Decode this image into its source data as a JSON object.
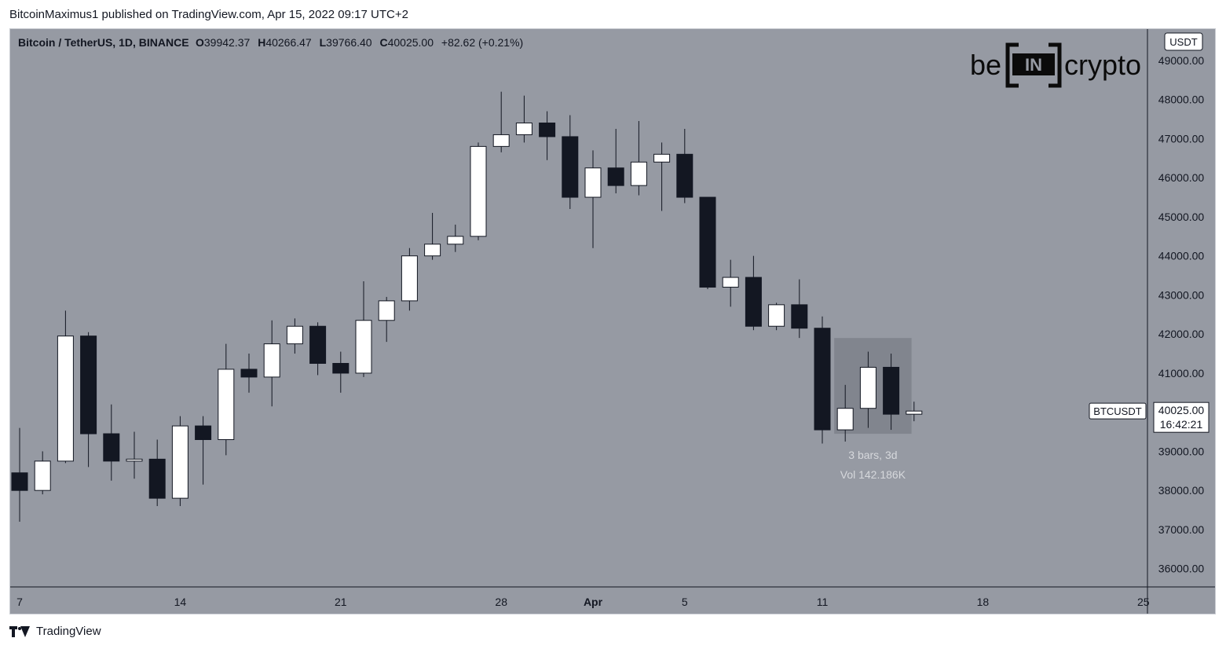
{
  "header": {
    "published_text": "BitcoinMaximus1 published on TradingView.com, Apr 15, 2022 09:17 UTC+2"
  },
  "legend": {
    "symbol": "Bitcoin / TetherUS, 1D, BINANCE",
    "o_label": "O",
    "o_value": "39942.37",
    "h_label": "H",
    "h_value": "40266.47",
    "l_label": "L",
    "l_value": "39766.40",
    "c_label": "C",
    "c_value": "40025.00",
    "change": "+82.62 (+0.21%)"
  },
  "watermark": {
    "left": "be",
    "mid": "IN",
    "right": "crypto"
  },
  "price_axis": {
    "unit_badge": "USDT"
  },
  "price_label": {
    "ticker": "BTCUSDT",
    "price": "40025.00",
    "countdown": "16:42:21"
  },
  "range_box": {
    "bars_text": "3 bars, 3d",
    "vol_text": "Vol 142.186K"
  },
  "footer": {
    "brand": "TradingView"
  },
  "colors": {
    "background": "#969aa3",
    "bull_fill": "#ffffff",
    "bear_fill": "#131722",
    "wick": "#131722",
    "axis_text": "#131722",
    "range_box": "#7a7e87"
  },
  "chart_data": {
    "type": "candlestick",
    "ylim": [
      35400,
      49500
    ],
    "yticks": [
      36000,
      37000,
      38000,
      39000,
      40000,
      41000,
      42000,
      43000,
      44000,
      45000,
      46000,
      47000,
      48000,
      49000
    ],
    "ytick_labels": [
      "36000.00",
      "37000.00",
      "38000.00",
      "39000.00",
      "40000.00",
      "41000.00",
      "42000.00",
      "43000.00",
      "44000.00",
      "45000.00",
      "46000.00",
      "47000.00",
      "48000.00",
      "49000.00"
    ],
    "xtick_labels": [
      {
        "bar": 0,
        "label": "7"
      },
      {
        "bar": 7,
        "label": "14"
      },
      {
        "bar": 14,
        "label": "21"
      },
      {
        "bar": 21,
        "label": "28"
      },
      {
        "bar": 25,
        "label": "Apr"
      },
      {
        "bar": 29,
        "label": "5"
      },
      {
        "bar": 35,
        "label": "11"
      },
      {
        "bar": 42,
        "label": "18"
      },
      {
        "bar": 49,
        "label": "25"
      }
    ],
    "candles": [
      {
        "o": 38450,
        "h": 39600,
        "l": 37200,
        "c": 38000
      },
      {
        "o": 38000,
        "h": 39000,
        "l": 37900,
        "c": 38750
      },
      {
        "o": 38750,
        "h": 42600,
        "l": 38700,
        "c": 41950
      },
      {
        "o": 41950,
        "h": 42050,
        "l": 38600,
        "c": 39450
      },
      {
        "o": 39450,
        "h": 40200,
        "l": 38250,
        "c": 38750
      },
      {
        "o": 38750,
        "h": 39500,
        "l": 38300,
        "c": 38800
      },
      {
        "o": 38800,
        "h": 39300,
        "l": 37600,
        "c": 37800
      },
      {
        "o": 37800,
        "h": 39900,
        "l": 37600,
        "c": 39650
      },
      {
        "o": 39650,
        "h": 39900,
        "l": 38150,
        "c": 39300
      },
      {
        "o": 39300,
        "h": 41750,
        "l": 38900,
        "c": 41100
      },
      {
        "o": 41100,
        "h": 41500,
        "l": 40500,
        "c": 40900
      },
      {
        "o": 40900,
        "h": 42350,
        "l": 40150,
        "c": 41750
      },
      {
        "o": 41750,
        "h": 42400,
        "l": 41500,
        "c": 42200
      },
      {
        "o": 42200,
        "h": 42300,
        "l": 40950,
        "c": 41250
      },
      {
        "o": 41250,
        "h": 41550,
        "l": 40500,
        "c": 41000
      },
      {
        "o": 41000,
        "h": 43350,
        "l": 40900,
        "c": 42350
      },
      {
        "o": 42350,
        "h": 42950,
        "l": 41800,
        "c": 42850
      },
      {
        "o": 42850,
        "h": 44200,
        "l": 42600,
        "c": 44000
      },
      {
        "o": 44000,
        "h": 45100,
        "l": 43900,
        "c": 44300
      },
      {
        "o": 44300,
        "h": 44800,
        "l": 44100,
        "c": 44500
      },
      {
        "o": 44500,
        "h": 46900,
        "l": 44400,
        "c": 46800
      },
      {
        "o": 46800,
        "h": 48200,
        "l": 46650,
        "c": 47100
      },
      {
        "o": 47100,
        "h": 48100,
        "l": 46900,
        "c": 47400
      },
      {
        "o": 47400,
        "h": 47700,
        "l": 46450,
        "c": 47050
      },
      {
        "o": 47050,
        "h": 47600,
        "l": 45200,
        "c": 45500
      },
      {
        "o": 45500,
        "h": 46700,
        "l": 44200,
        "c": 46250
      },
      {
        "o": 46250,
        "h": 47250,
        "l": 45600,
        "c": 45800
      },
      {
        "o": 45800,
        "h": 47450,
        "l": 45550,
        "c": 46400
      },
      {
        "o": 46400,
        "h": 46900,
        "l": 45150,
        "c": 46600
      },
      {
        "o": 46600,
        "h": 47250,
        "l": 45350,
        "c": 45500
      },
      {
        "o": 45500,
        "h": 45500,
        "l": 43150,
        "c": 43200
      },
      {
        "o": 43200,
        "h": 43900,
        "l": 42700,
        "c": 43450
      },
      {
        "o": 43450,
        "h": 44000,
        "l": 42100,
        "c": 42200
      },
      {
        "o": 42200,
        "h": 42800,
        "l": 42100,
        "c": 42750
      },
      {
        "o": 42750,
        "h": 43400,
        "l": 41900,
        "c": 42150
      },
      {
        "o": 42150,
        "h": 42450,
        "l": 39200,
        "c": 39550
      },
      {
        "o": 39550,
        "h": 40700,
        "l": 39250,
        "c": 40100
      },
      {
        "o": 40100,
        "h": 41550,
        "l": 39600,
        "c": 41150
      },
      {
        "o": 41150,
        "h": 41500,
        "l": 39550,
        "c": 39950
      },
      {
        "o": 39950,
        "h": 40270,
        "l": 39770,
        "c": 40030
      }
    ],
    "range_box": {
      "bar_start": 36,
      "bar_end": 38,
      "y_top": 41900,
      "y_bottom": 39450
    }
  }
}
